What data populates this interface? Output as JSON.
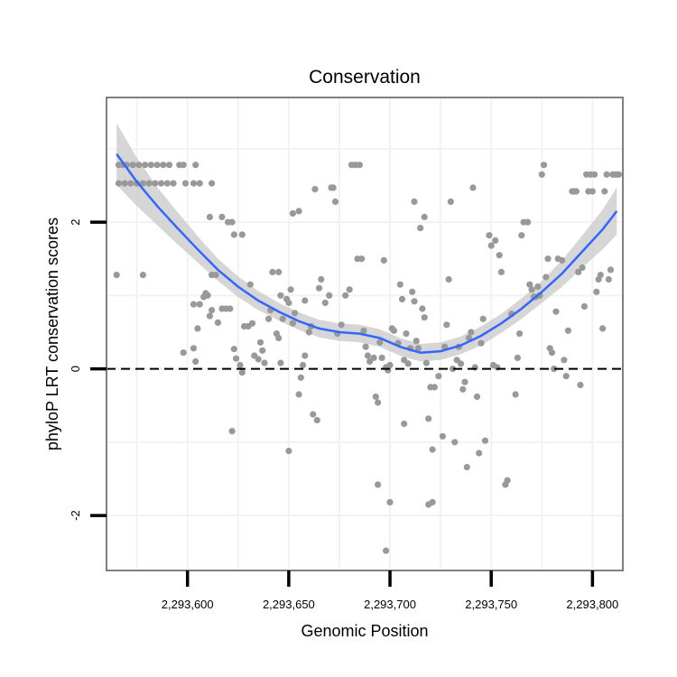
{
  "chart_data": {
    "type": "scatter",
    "title": "Conservation",
    "xlabel": "Genomic Position",
    "ylabel": "phyloP LRT conservation scores",
    "xlim": [
      2293560,
      2293815
    ],
    "ylim": [
      -2.75,
      3.7
    ],
    "x_ticks": [
      2293600,
      2293650,
      2293700,
      2293750,
      2293800
    ],
    "x_tick_labels": [
      "2,293,600",
      "2,293,650",
      "2,293,700",
      "2,293,750",
      "2,293,800"
    ],
    "y_ticks": [
      -2,
      0,
      2
    ],
    "y_tick_labels": [
      "-2",
      "0",
      "2"
    ],
    "reference_line_y": 0,
    "grid": true,
    "colors": {
      "points": "#999999",
      "smooth_line": "#3366ff",
      "confidence_band": "#c8c8c8",
      "reference_line": "#000000",
      "panel_border": "#808080",
      "grid": "#f2f2f2"
    },
    "points": [
      [
        2293566,
        2.78
      ],
      [
        2293568,
        2.78
      ],
      [
        2293570,
        2.78
      ],
      [
        2293573,
        2.78
      ],
      [
        2293576,
        2.78
      ],
      [
        2293579,
        2.78
      ],
      [
        2293582,
        2.78
      ],
      [
        2293585,
        2.78
      ],
      [
        2293588,
        2.78
      ],
      [
        2293591,
        2.78
      ],
      [
        2293596,
        2.78
      ],
      [
        2293598,
        2.78
      ],
      [
        2293604,
        2.78
      ],
      [
        2293566,
        2.53
      ],
      [
        2293569,
        2.53
      ],
      [
        2293572,
        2.53
      ],
      [
        2293575,
        2.53
      ],
      [
        2293578,
        2.53
      ],
      [
        2293581,
        2.53
      ],
      [
        2293584,
        2.53
      ],
      [
        2293587,
        2.53
      ],
      [
        2293590,
        2.53
      ],
      [
        2293593,
        2.53
      ],
      [
        2293599,
        2.53
      ],
      [
        2293603,
        2.53
      ],
      [
        2293606,
        2.53
      ],
      [
        2293612,
        2.53
      ],
      [
        2293565,
        1.28
      ],
      [
        2293578,
        1.28
      ],
      [
        2293611,
        2.07
      ],
      [
        2293617,
        2.07
      ],
      [
        2293620,
        2.0
      ],
      [
        2293622,
        2.0
      ],
      [
        2293623,
        1.83
      ],
      [
        2293627,
        1.83
      ],
      [
        2293612,
        1.28
      ],
      [
        2293614,
        1.28
      ],
      [
        2293605,
        0.55
      ],
      [
        2293603,
        0.88
      ],
      [
        2293606,
        0.88
      ],
      [
        2293608,
        0.98
      ],
      [
        2293609,
        1.03
      ],
      [
        2293611,
        0.72
      ],
      [
        2293603,
        0.28
      ],
      [
        2293604,
        0.1
      ],
      [
        2293612,
        0.8
      ],
      [
        2293615,
        0.63
      ],
      [
        2293619,
        0.82
      ],
      [
        2293621,
        0.82
      ],
      [
        2293623,
        0.27
      ],
      [
        2293624,
        0.14
      ],
      [
        2293626,
        0.05
      ],
      [
        2293627,
        -0.05
      ],
      [
        2293628,
        0.58
      ],
      [
        2293630,
        0.58
      ],
      [
        2293632,
        0.62
      ],
      [
        2293633,
        0.18
      ],
      [
        2293635,
        0.13
      ],
      [
        2293636,
        0.36
      ],
      [
        2293637,
        0.25
      ],
      [
        2293638,
        0.08
      ],
      [
        2293640,
        0.68
      ],
      [
        2293641,
        0.8
      ],
      [
        2293642,
        1.32
      ],
      [
        2293644,
        0.48
      ],
      [
        2293645,
        0.42
      ],
      [
        2293646,
        0.08
      ],
      [
        2293647,
        0.68
      ],
      [
        2293649,
        0.95
      ],
      [
        2293650,
        0.9
      ],
      [
        2293651,
        1.08
      ],
      [
        2293652,
        0.62
      ],
      [
        2293653,
        0.76
      ],
      [
        2293655,
        -0.35
      ],
      [
        2293656,
        -0.12
      ],
      [
        2293657,
        0.05
      ],
      [
        2293658,
        0.18
      ],
      [
        2293660,
        0.5
      ],
      [
        2293662,
        -0.62
      ],
      [
        2293664,
        -0.7
      ],
      [
        2293665,
        1.1
      ],
      [
        2293666,
        1.22
      ],
      [
        2293668,
        0.9
      ],
      [
        2293670,
        1.0
      ],
      [
        2293671,
        2.47
      ],
      [
        2293672,
        2.47
      ],
      [
        2293673,
        2.28
      ],
      [
        2293674,
        0.48
      ],
      [
        2293676,
        0.6
      ],
      [
        2293678,
        1.0
      ],
      [
        2293680,
        1.08
      ],
      [
        2293684,
        1.5
      ],
      [
        2293686,
        1.5
      ],
      [
        2293687,
        0.52
      ],
      [
        2293688,
        0.3
      ],
      [
        2293689,
        0.18
      ],
      [
        2293690,
        0.1
      ],
      [
        2293692,
        0.15
      ],
      [
        2293693,
        -0.38
      ],
      [
        2293694,
        -0.46
      ],
      [
        2293695,
        0.36
      ],
      [
        2293696,
        0.15
      ],
      [
        2293697,
        1.48
      ],
      [
        2293698,
        0.02
      ],
      [
        2293699,
        -0.02
      ],
      [
        2293700,
        0.05
      ],
      [
        2293701,
        0.55
      ],
      [
        2293702,
        0.52
      ],
      [
        2293704,
        0.35
      ],
      [
        2293705,
        1.15
      ],
      [
        2293706,
        0.95
      ],
      [
        2293707,
        0.12
      ],
      [
        2293708,
        0.48
      ],
      [
        2293709,
        0.07
      ],
      [
        2293710,
        0.28
      ],
      [
        2293711,
        1.05
      ],
      [
        2293712,
        0.92
      ],
      [
        2293713,
        0.38
      ],
      [
        2293714,
        0.28
      ],
      [
        2293716,
        0.82
      ],
      [
        2293717,
        0.7
      ],
      [
        2293718,
        0.08
      ],
      [
        2293719,
        -0.68
      ],
      [
        2293720,
        -0.25
      ],
      [
        2293721,
        -1.1
      ],
      [
        2293722,
        -0.25
      ],
      [
        2293724,
        -0.1
      ],
      [
        2293726,
        -0.92
      ],
      [
        2293727,
        0.3
      ],
      [
        2293728,
        0.6
      ],
      [
        2293729,
        1.22
      ],
      [
        2293730,
        2.28
      ],
      [
        2293731,
        0.0
      ],
      [
        2293732,
        -1.0
      ],
      [
        2293733,
        0.12
      ],
      [
        2293734,
        0.3
      ],
      [
        2293735,
        0.07
      ],
      [
        2293736,
        -0.28
      ],
      [
        2293737,
        -0.18
      ],
      [
        2293738,
        -1.34
      ],
      [
        2293739,
        0.42
      ],
      [
        2293740,
        0.5
      ],
      [
        2293741,
        2.47
      ],
      [
        2293742,
        0.02
      ],
      [
        2293743,
        -0.38
      ],
      [
        2293744,
        -1.15
      ],
      [
        2293745,
        0.35
      ],
      [
        2293746,
        0.68
      ],
      [
        2293747,
        -0.98
      ],
      [
        2293749,
        1.82
      ],
      [
        2293750,
        1.68
      ],
      [
        2293751,
        0.05
      ],
      [
        2293752,
        1.75
      ],
      [
        2293753,
        0.02
      ],
      [
        2293754,
        1.55
      ],
      [
        2293755,
        1.32
      ],
      [
        2293757,
        -1.58
      ],
      [
        2293758,
        -1.52
      ],
      [
        2293760,
        0.75
      ],
      [
        2293762,
        -0.35
      ],
      [
        2293763,
        0.15
      ],
      [
        2293764,
        0.48
      ],
      [
        2293765,
        1.82
      ],
      [
        2293766,
        2.0
      ],
      [
        2293768,
        2.0
      ],
      [
        2293769,
        1.15
      ],
      [
        2293770,
        1.08
      ],
      [
        2293771,
        0.98
      ],
      [
        2293772,
        0.98
      ],
      [
        2293773,
        1.12
      ],
      [
        2293774,
        1.0
      ],
      [
        2293775,
        2.65
      ],
      [
        2293776,
        2.78
      ],
      [
        2293777,
        1.25
      ],
      [
        2293778,
        1.5
      ],
      [
        2293779,
        0.28
      ],
      [
        2293780,
        0.22
      ],
      [
        2293781,
        0.0
      ],
      [
        2293782,
        0.78
      ],
      [
        2293783,
        1.5
      ],
      [
        2293785,
        1.48
      ],
      [
        2293786,
        0.12
      ],
      [
        2293787,
        -0.1
      ],
      [
        2293788,
        0.52
      ],
      [
        2293790,
        2.42
      ],
      [
        2293791,
        2.42
      ],
      [
        2293792,
        2.42
      ],
      [
        2293793,
        1.32
      ],
      [
        2293794,
        -0.22
      ],
      [
        2293795,
        1.38
      ],
      [
        2293796,
        0.85
      ],
      [
        2293797,
        2.65
      ],
      [
        2293798,
        2.42
      ],
      [
        2293799,
        2.65
      ],
      [
        2293800,
        2.42
      ],
      [
        2293801,
        2.65
      ],
      [
        2293802,
        1.05
      ],
      [
        2293803,
        1.22
      ],
      [
        2293804,
        1.28
      ],
      [
        2293805,
        0.55
      ],
      [
        2293806,
        2.42
      ],
      [
        2293807,
        2.65
      ],
      [
        2293808,
        1.22
      ],
      [
        2293809,
        1.35
      ],
      [
        2293810,
        2.65
      ],
      [
        2293811,
        2.65
      ],
      [
        2293812,
        2.65
      ],
      [
        2293813,
        2.65
      ],
      [
        2293622,
        -0.85
      ],
      [
        2293650,
        -1.12
      ],
      [
        2293694,
        -1.58
      ],
      [
        2293698,
        -2.48
      ],
      [
        2293700,
        -1.82
      ],
      [
        2293719,
        -1.85
      ],
      [
        2293721,
        -1.82
      ],
      [
        2293707,
        -0.75
      ],
      [
        2293717,
        2.07
      ],
      [
        2293715,
        1.92
      ],
      [
        2293712,
        2.28
      ],
      [
        2293655,
        2.15
      ],
      [
        2293652,
        2.12
      ],
      [
        2293663,
        2.45
      ],
      [
        2293681,
        2.78
      ],
      [
        2293683,
        2.78
      ],
      [
        2293685,
        2.78
      ],
      [
        2293661,
        0.58
      ],
      [
        2293645,
        1.32
      ],
      [
        2293658,
        0.93
      ],
      [
        2293646,
        1.0
      ],
      [
        2293631,
        1.15
      ],
      [
        2293598,
        0.22
      ],
      [
        2293617,
        0.82
      ],
      [
        2293610,
        1.0
      ]
    ],
    "smooth": {
      "x": [
        2293565,
        2293575,
        2293585,
        2293595,
        2293605,
        2293615,
        2293625,
        2293635,
        2293645,
        2293655,
        2293665,
        2293675,
        2293685,
        2293695,
        2293705,
        2293715,
        2293725,
        2293735,
        2293745,
        2293755,
        2293765,
        2293775,
        2293785,
        2293795,
        2293805,
        2293812
      ],
      "y": [
        2.93,
        2.55,
        2.22,
        1.92,
        1.63,
        1.35,
        1.12,
        0.93,
        0.78,
        0.65,
        0.55,
        0.5,
        0.48,
        0.42,
        0.3,
        0.22,
        0.24,
        0.32,
        0.45,
        0.62,
        0.82,
        1.05,
        1.3,
        1.6,
        1.9,
        2.15
      ],
      "se": [
        0.42,
        0.33,
        0.26,
        0.22,
        0.18,
        0.15,
        0.14,
        0.13,
        0.12,
        0.12,
        0.12,
        0.12,
        0.12,
        0.12,
        0.12,
        0.12,
        0.12,
        0.12,
        0.13,
        0.13,
        0.14,
        0.15,
        0.18,
        0.22,
        0.27,
        0.32
      ]
    }
  }
}
